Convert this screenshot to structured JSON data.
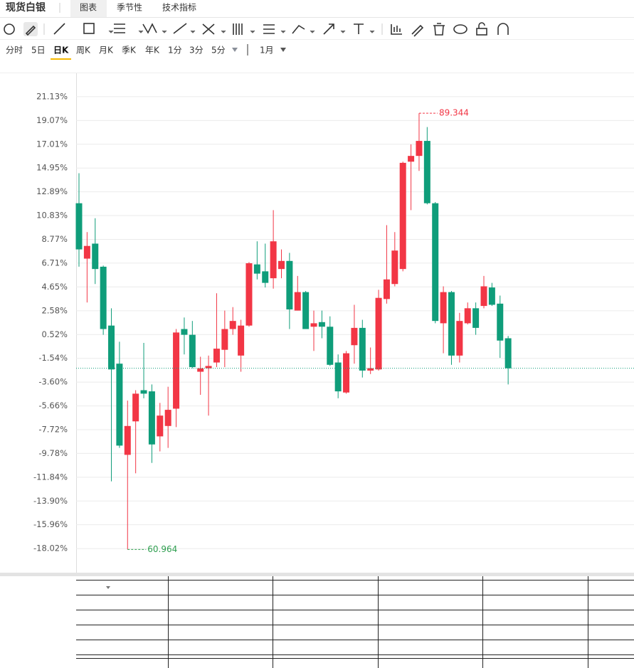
{
  "header": {
    "title": "现货白银",
    "tabs": [
      "图表",
      "季节性",
      "技术指标"
    ]
  },
  "timeframes": [
    "分时",
    "5日",
    "日K",
    "周K",
    "月K",
    "季K",
    "年K",
    "1分",
    "3分",
    "5分"
  ],
  "period": "1月",
  "chart_data": {
    "type": "candlestick",
    "up_color": "#f23645",
    "down_color": "#0f9d7a",
    "open": [
      11.9,
      7.1,
      8.4,
      6.4,
      1.3,
      -2.0,
      -9.9,
      -7.0,
      -4.3,
      -4.4,
      -8.3,
      -7.4,
      -5.9,
      1.0,
      0.5,
      -2.7,
      -2.4,
      -1.9,
      -0.8,
      1.0,
      -1.3,
      1.3,
      6.6,
      6.0,
      5.4,
      6.2,
      6.9,
      2.6,
      4.2,
      1.2,
      1.6,
      1.2,
      -1.9,
      -4.5,
      -0.4,
      1.1,
      -2.6,
      -2.5,
      3.6,
      4.9,
      6.2,
      15.5,
      16.0,
      17.3,
      11.9,
      1.5,
      4.2,
      -1.3,
      1.5,
      2.8,
      3.0,
      4.6,
      3.2,
      0.2
    ],
    "high": [
      14.5,
      9.4,
      10.6,
      6.5,
      2.8,
      -0.1,
      -5.2,
      -4.3,
      -0.2,
      -3.8,
      -5.4,
      -4.0,
      1.0,
      2.0,
      1.7,
      -1.4,
      -1.3,
      4.1,
      2.6,
      2.9,
      1.8,
      6.8,
      8.6,
      8.4,
      11.3,
      7.9,
      7.6,
      5.6,
      4.3,
      2.6,
      2.6,
      2.1,
      -1.2,
      -0.9,
      3.1,
      1.8,
      -0.6,
      4.4,
      10.0,
      9.4,
      15.5,
      17.0,
      19.7,
      18.5,
      12.0,
      4.7,
      4.3,
      2.4,
      3.3,
      3.3,
      5.6,
      5.0,
      3.9,
      0.4
    ],
    "low": [
      6.4,
      3.3,
      4.9,
      0.5,
      -12.2,
      -9.3,
      -18.1,
      -11.5,
      -5.0,
      -10.6,
      -9.6,
      -9.3,
      -7.5,
      -1.2,
      -2.4,
      -4.7,
      -6.5,
      -2.3,
      -2.3,
      0.5,
      -2.7,
      1.2,
      5.3,
      4.6,
      4.5,
      5.4,
      1.0,
      2.6,
      1.0,
      -0.9,
      0.2,
      -2.2,
      -5.0,
      -4.6,
      -2.0,
      -3.2,
      -2.9,
      -2.6,
      3.2,
      4.7,
      6.0,
      11.3,
      14.7,
      11.8,
      1.5,
      -1.1,
      -2.1,
      -1.9,
      1.4,
      0.5,
      2.8,
      3.0,
      -1.5,
      -3.8
    ],
    "close": [
      7.9,
      8.2,
      6.2,
      1.0,
      -2.5,
      -9.1,
      -7.4,
      -4.6,
      -4.6,
      -9.0,
      -6.5,
      -6.0,
      0.7,
      0.5,
      -2.3,
      -2.4,
      -2.2,
      -0.7,
      1.0,
      1.7,
      1.3,
      6.7,
      5.8,
      5.0,
      8.6,
      6.9,
      2.7,
      4.2,
      1.0,
      1.5,
      1.2,
      -2.1,
      -4.4,
      -1.1,
      1.1,
      -2.6,
      -2.4,
      3.7,
      5.3,
      7.8,
      15.4,
      16.0,
      17.3,
      11.9,
      1.7,
      4.2,
      -1.3,
      1.7,
      2.8,
      1.1,
      4.7,
      3.1,
      0.0,
      -2.4
    ],
    "ylim": [
      -20.11,
      23.16
    ],
    "yticks": [
      {
        "value": 21.13,
        "label": "21.13%"
      },
      {
        "value": 19.07,
        "label": "19.07%"
      },
      {
        "value": 17.01,
        "label": "17.01%"
      },
      {
        "value": 14.95,
        "label": "14.95%"
      },
      {
        "value": 12.89,
        "label": "12.89%"
      },
      {
        "value": 10.83,
        "label": "10.83%"
      },
      {
        "value": 8.77,
        "label": "8.77%"
      },
      {
        "value": 6.71,
        "label": "6.71%"
      },
      {
        "value": 4.65,
        "label": "4.65%"
      },
      {
        "value": 2.58,
        "label": "2.58%"
      },
      {
        "value": 0.52,
        "label": "0.52%"
      },
      {
        "value": -1.54,
        "label": "-1.54%"
      },
      {
        "value": -3.6,
        "label": "-3.60%"
      },
      {
        "value": -5.66,
        "label": "-5.66%"
      },
      {
        "value": -7.72,
        "label": "-7.72%"
      },
      {
        "value": -9.78,
        "label": "-9.78%"
      },
      {
        "value": -11.84,
        "label": "-11.84%"
      },
      {
        "value": -13.9,
        "label": "-13.90%"
      },
      {
        "value": -15.96,
        "label": "-15.96%"
      },
      {
        "value": -18.02,
        "label": "-18.02%"
      }
    ],
    "grid": true,
    "annotations": [
      {
        "text": "89.344",
        "color": "#f23645"
      },
      {
        "text": "60.964",
        "color": "#2e9e4f"
      }
    ]
  }
}
